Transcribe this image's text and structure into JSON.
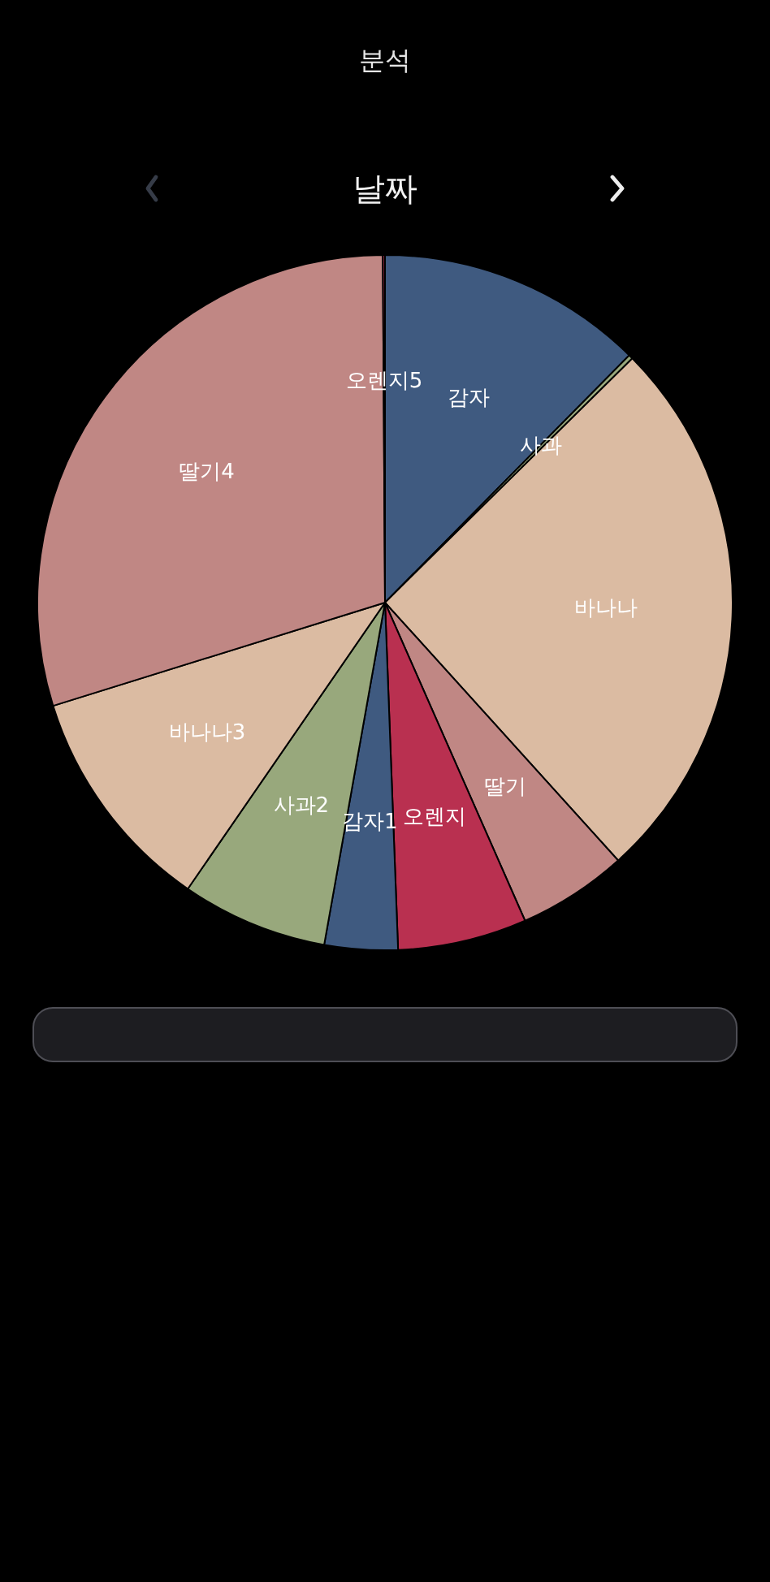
{
  "chart_data": {
    "type": "pie",
    "title": "분석",
    "subtitle": "날짜",
    "categories": [
      "감자",
      "사과",
      "바나나",
      "딸기",
      "오렌지",
      "감자1",
      "사과2",
      "바나나3",
      "딸기4",
      "오렌지5"
    ],
    "values": [
      12.4,
      0.2,
      25.7,
      5.1,
      6.0,
      3.4,
      6.8,
      10.6,
      29.7,
      0.1
    ],
    "colors": [
      "#3f5a80",
      "#98a87c",
      "#dbbba2",
      "#c08784",
      "#b93050",
      "#3f5a80",
      "#98a87c",
      "#dbbba2",
      "#c08784",
      "#b93050"
    ]
  }
}
